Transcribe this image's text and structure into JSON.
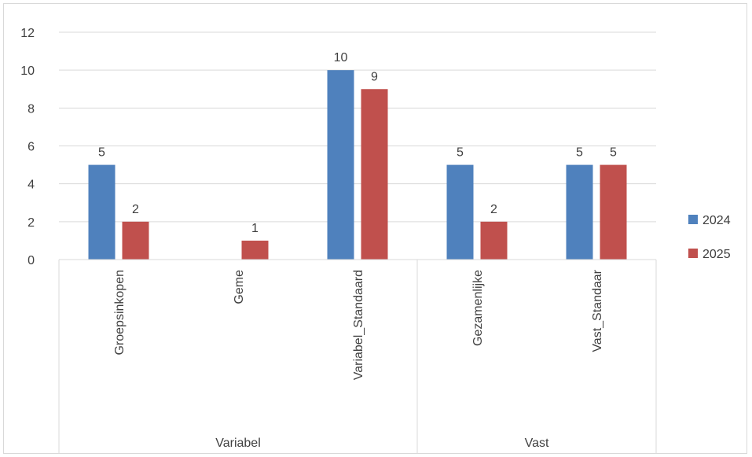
{
  "chart_data": {
    "type": "bar",
    "categories": [
      "Groepsinkopen",
      "Geme",
      "Variabel_Standaard",
      "Gezamenlijke",
      "Vast_Standaar"
    ],
    "groups": [
      {
        "label": "Variabel",
        "categories": [
          "Groepsinkopen",
          "Geme",
          "Variabel_Standaard"
        ]
      },
      {
        "label": "Vast",
        "categories": [
          "Gezamenlijke",
          "Vast_Standaar"
        ]
      }
    ],
    "series": [
      {
        "name": "2024",
        "color": "#4f81bd",
        "values": [
          5,
          null,
          10,
          5,
          5
        ]
      },
      {
        "name": "2025",
        "color": "#c0504d",
        "values": [
          2,
          1,
          9,
          2,
          5
        ]
      }
    ],
    "ylim": [
      0,
      12
    ],
    "yticks": [
      0,
      2,
      4,
      6,
      8,
      10,
      12
    ],
    "grid": true,
    "data_labels": true,
    "legend_position": "right"
  }
}
